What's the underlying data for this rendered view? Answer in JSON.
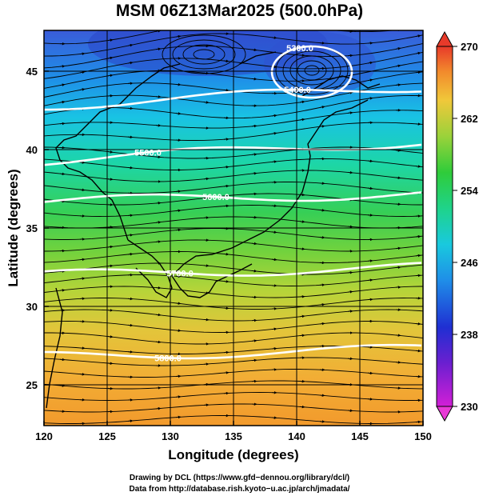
{
  "title": "MSM 06Z13Mar2025 (500.0hPa)",
  "chart_data": {
    "type": "heatmap",
    "title": "MSM 06Z13Mar2025 (500.0hPa)",
    "xlabel": "Longitude (degrees)",
    "ylabel": "Latitude  (degrees)",
    "xlim": [
      120,
      150
    ],
    "ylim": [
      22.4,
      47.6
    ],
    "x_ticks": [
      "120",
      "125",
      "130",
      "135",
      "140",
      "145",
      "150"
    ],
    "y_ticks": [
      "25",
      "30",
      "35",
      "40",
      "45"
    ],
    "colorbar": {
      "range": [
        230,
        270
      ],
      "ticks": [
        "230",
        "238",
        "246",
        "254",
        "262",
        "270"
      ]
    },
    "contours": [
      {
        "label": "5300.0",
        "lat": 46.8
      },
      {
        "label": "5400.0",
        "lat": 42.8
      },
      {
        "label": "5500.0",
        "lat": 39.3
      },
      {
        "label": "5600.0",
        "lat": 36.7
      },
      {
        "label": "5700.0",
        "lat": 32.0
      },
      {
        "label": "5800.0",
        "lat": 26.8
      }
    ],
    "grid": true
  },
  "footer": {
    "line1": "Drawing by DCL (https://www.gfd−dennou.org/library/dcl/)",
    "line2": "Data from http://database.rish.kyoto−u.ac.jp/arch/jmadata/"
  }
}
